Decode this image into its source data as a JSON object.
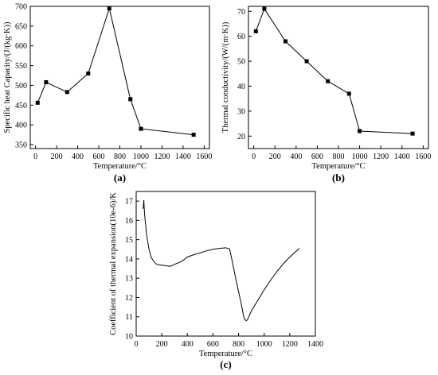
{
  "chart_data": [
    {
      "id": "a",
      "panel_label": "(a)",
      "type": "line",
      "xlabel": "Temperature/°C",
      "ylabel": "Specific heat Capacity/(J/(kg·K))",
      "xlim": [
        -50,
        1650
      ],
      "ylim": [
        340,
        700
      ],
      "xticks": [
        0,
        200,
        400,
        600,
        800,
        1000,
        1200,
        1400,
        1600
      ],
      "yticks": [
        350,
        400,
        450,
        500,
        550,
        600,
        650,
        700
      ],
      "markers": true,
      "x": [
        20,
        100,
        300,
        500,
        700,
        900,
        1000,
        1500
      ],
      "y": [
        456,
        508,
        483,
        530,
        695,
        465,
        390,
        375
      ]
    },
    {
      "id": "b",
      "panel_label": "(b)",
      "type": "line",
      "xlabel": "Temperature/°C",
      "ylabel": "Thermal conductivity/(W/(m·K))",
      "xlim": [
        -50,
        1650
      ],
      "ylim": [
        15,
        72
      ],
      "xticks": [
        0,
        200,
        400,
        600,
        800,
        1000,
        1200,
        1400,
        1600
      ],
      "yticks": [
        20,
        30,
        40,
        50,
        60,
        70
      ],
      "markers": true,
      "x": [
        20,
        100,
        300,
        500,
        700,
        900,
        1000,
        1500
      ],
      "y": [
        62,
        71,
        58,
        50,
        42,
        37,
        22,
        21
      ]
    },
    {
      "id": "c",
      "panel_label": "(c)",
      "type": "line",
      "xlabel": "Temperature/°C",
      "ylabel": "Coefficient of thermal expansion(10e-6)/K",
      "xlim": [
        0,
        1400
      ],
      "ylim": [
        10,
        17.5
      ],
      "xticks": [
        0,
        200,
        400,
        600,
        800,
        1000,
        1200,
        1400
      ],
      "yticks": [
        10,
        11,
        12,
        13,
        14,
        15,
        16,
        17
      ],
      "markers": false,
      "x": [
        55,
        60,
        65,
        70,
        75,
        80,
        90,
        100,
        110,
        120,
        140,
        160,
        180,
        200,
        230,
        260,
        280,
        300,
        330,
        360,
        400,
        450,
        500,
        550,
        600,
        650,
        700,
        730,
        750,
        780,
        800,
        820,
        840,
        850,
        860,
        870,
        880,
        900,
        950,
        1000,
        1050,
        1100,
        1150,
        1200,
        1250,
        1275
      ],
      "y": [
        16.6,
        17.05,
        16.4,
        16.0,
        15.7,
        15.3,
        14.9,
        14.5,
        14.25,
        14.05,
        13.85,
        13.72,
        13.7,
        13.68,
        13.65,
        13.62,
        13.65,
        13.72,
        13.8,
        13.9,
        14.1,
        14.22,
        14.32,
        14.42,
        14.5,
        14.55,
        14.58,
        14.52,
        13.9,
        12.9,
        12.3,
        11.7,
        11.0,
        10.85,
        10.8,
        10.85,
        11.0,
        11.3,
        11.85,
        12.4,
        12.9,
        13.35,
        13.75,
        14.1,
        14.4,
        14.55
      ]
    }
  ]
}
